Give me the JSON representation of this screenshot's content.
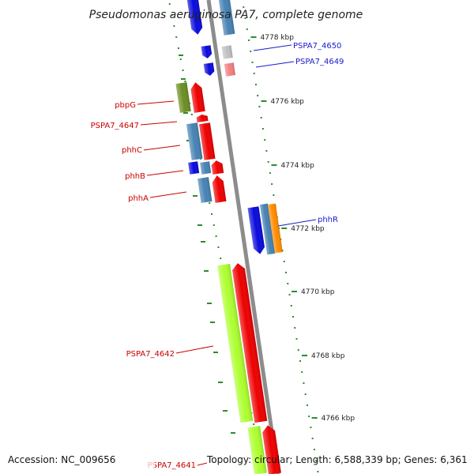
{
  "title": "Pseudomonas aeruginosa PA7, complete genome",
  "footer": {
    "accession": "Accession: NC_009656",
    "summary": "Topology: circular; Length: 6,588,339 bp; Genes: 6,361"
  },
  "colors": {
    "backbone": "#8c8c8c",
    "ticks": "#2e8b2e",
    "label_red": "#cc0000",
    "label_blue": "#1a1acc"
  },
  "ticks": [
    {
      "label": "4778 kbp"
    },
    {
      "label": "4776 kbp"
    },
    {
      "label": "4774 kbp"
    },
    {
      "label": "4772 kbp"
    },
    {
      "label": "4770 kbp"
    },
    {
      "label": "4768 kbp"
    },
    {
      "label": "4766 kbp"
    }
  ],
  "left_labels": [
    {
      "text": "pbpG"
    },
    {
      "text": "PSPA7_4647"
    },
    {
      "text": "phhC"
    },
    {
      "text": "phhB"
    },
    {
      "text": "phhA"
    },
    {
      "text": "PSPA7_4642"
    },
    {
      "text": "PSPA7_4641"
    }
  ],
  "right_labels": [
    {
      "text": "PSPA7_4650"
    },
    {
      "text": "PSPA7_4649"
    },
    {
      "text": "phhR"
    }
  ],
  "features": [
    {
      "name": "gene-top-blue",
      "color": "#0a0adc"
    },
    {
      "name": "gene-top-steelblue",
      "color": "#4682b4"
    },
    {
      "name": "gene-4650-blue",
      "color": "#0a0adc"
    },
    {
      "name": "gene-4650-gray",
      "color": "#c0c0c0"
    },
    {
      "name": "gene-4649-blue",
      "color": "#0a0adc"
    },
    {
      "name": "gene-4649-pink",
      "color": "#f08080"
    },
    {
      "name": "gene-pbpg-olive",
      "color": "#6b8e23"
    },
    {
      "name": "gene-pbpg-red",
      "color": "#ee0000"
    },
    {
      "name": "gene-4647-red",
      "color": "#ee0000"
    },
    {
      "name": "gene-phhc-steelblue",
      "color": "#4682b4"
    },
    {
      "name": "gene-phhc-red",
      "color": "#ee0000"
    },
    {
      "name": "gene-phhb-blue",
      "color": "#0a0adc"
    },
    {
      "name": "gene-phhb-steelblue",
      "color": "#4682b4"
    },
    {
      "name": "gene-phhb-red",
      "color": "#ee0000"
    },
    {
      "name": "gene-phha-steelblue",
      "color": "#4682b4"
    },
    {
      "name": "gene-phha-red",
      "color": "#ee0000"
    },
    {
      "name": "gene-phhr-blue",
      "color": "#0a0adc"
    },
    {
      "name": "gene-phhr-steelblue",
      "color": "#4682b4"
    },
    {
      "name": "gene-phhr-orange",
      "color": "#ff8c00"
    },
    {
      "name": "gene-4642-yellowgreen",
      "color": "#adff2f"
    },
    {
      "name": "gene-4642-red",
      "color": "#ee0000"
    },
    {
      "name": "gene-4641-yellowgreen",
      "color": "#adff2f"
    },
    {
      "name": "gene-4641-red",
      "color": "#ee0000"
    }
  ]
}
